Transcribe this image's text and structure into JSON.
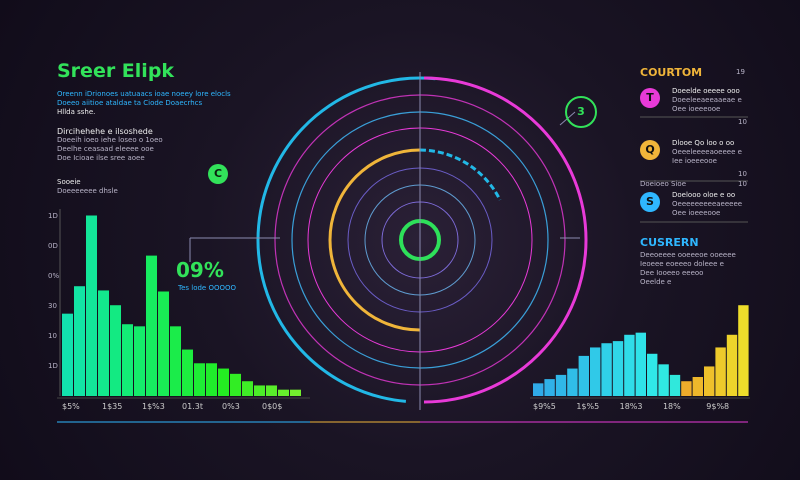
{
  "header": {
    "title": "Sreer Elipk",
    "intro": [
      "Oreenn iDrionoes uatuaacs ioae noeey lore elocls",
      "Doeeo aiitioe ataldae ta Ciode Doaecrhcs",
      "Hllda sshe."
    ]
  },
  "section": {
    "heading": "Dircihehehe e ilsoshede",
    "lines": [
      "Doeeih ioeo iehe loseo o 1oeo",
      "Deelhe ceasaad eleeee ooe",
      "Doe Icioae ilse sree aoee"
    ]
  },
  "left_chart": {
    "label": "Sooeie",
    "sublabel": "Doeeeeeee dhsle",
    "yticks": [
      "1D",
      "0D",
      "0%",
      "30",
      "10",
      "1D"
    ],
    "ylim": [
      0,
      180
    ],
    "values": [
      78,
      104,
      171,
      100,
      86,
      68,
      66,
      133,
      99,
      66,
      44,
      31,
      31,
      26,
      21,
      14,
      10,
      10,
      6,
      6
    ],
    "xlabels": [
      "$5%",
      "1$35",
      "1$%3",
      "01.3t",
      "0%3",
      "0$0$"
    ]
  },
  "stat": {
    "value": "09%",
    "caption": "Tes lode OOOOO"
  },
  "badges": {
    "top": "3",
    "left": "C"
  },
  "legend": {
    "title": "COURTOM",
    "count": "19",
    "items": [
      {
        "icon": "T",
        "tag": "",
        "lines": [
          "Doeelde oeeee ooo",
          "Doeeleeaeeaaeae e",
          "Oee ioeeeooe"
        ]
      },
      {
        "icon": "Q",
        "tag": "10",
        "lines": [
          "Dlooe Qo loo o oo",
          "Oeeeleeeeaoeeee e",
          "Iee ioeeeooe"
        ]
      },
      {
        "icon": "S",
        "tag": "10",
        "lines": [
          "Doelooo oloe e oo",
          "Oeeeeeeeeeaeeeee",
          "Oee ioeeeooe"
        ]
      }
    ]
  },
  "divider": {
    "label": "Doeioeo Sioe",
    "tag": "10"
  },
  "current": {
    "title": "CUSRERN",
    "lines": [
      "Deeoeeee ooeeeoe ooeeee",
      "Ieoeee eoeeeo doleee e",
      "Dee Iooeeo eeeoo",
      "Oeelde e"
    ]
  },
  "right_chart": {
    "ylim": [
      0,
      180
    ],
    "values": [
      12,
      16,
      20,
      26,
      38,
      46,
      50,
      52,
      58,
      60,
      40,
      30,
      20,
      14,
      18,
      28,
      46,
      58,
      86
    ],
    "xlabels": [
      "$9%5",
      "1$%5",
      "18%3",
      "18%",
      "9$%8"
    ]
  }
}
